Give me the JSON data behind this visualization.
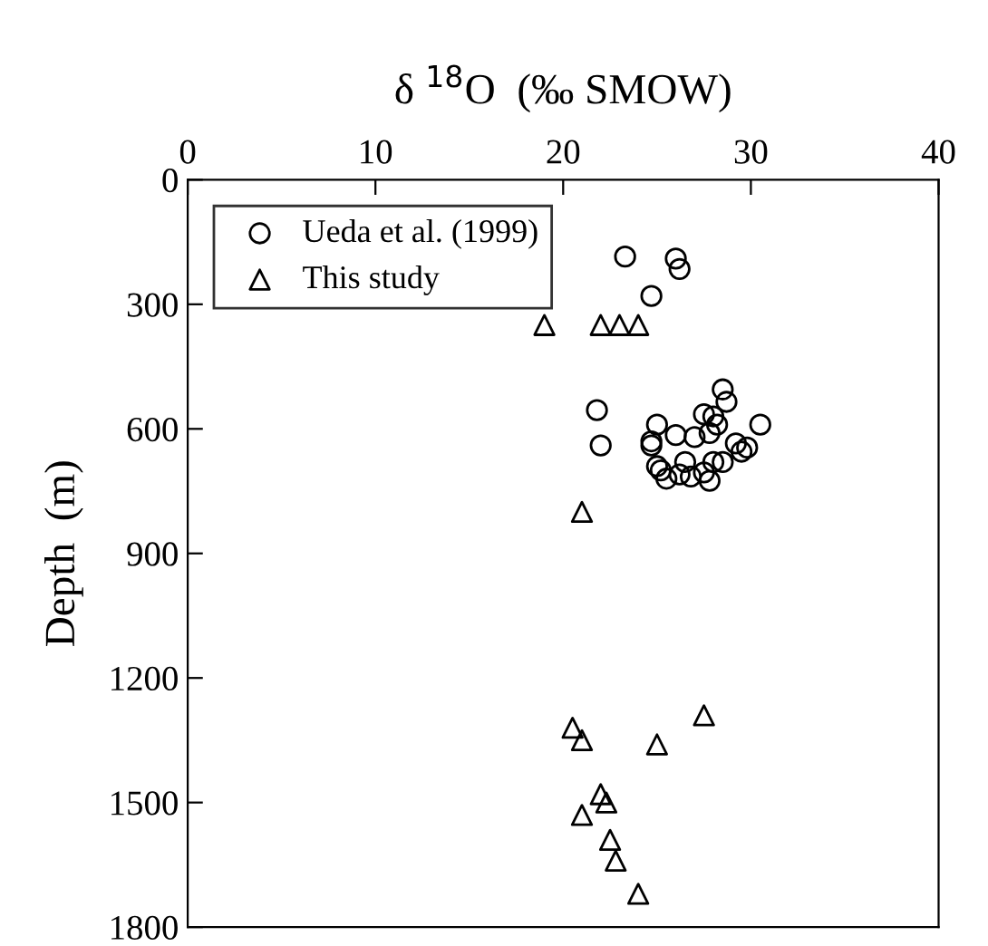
{
  "chart_data": {
    "type": "scatter",
    "xlabel": "δ $^{18}$O  (‰ SMOW)",
    "ylabel": "Depth  (m)",
    "xlim": [
      0,
      40
    ],
    "xticks": [
      0,
      10,
      20,
      30,
      40
    ],
    "ylim": [
      1800,
      0
    ],
    "yticks": [
      0,
      300,
      600,
      900,
      1200,
      1500,
      1800
    ],
    "legend": "top left",
    "grid": false,
    "series": [
      {
        "name": "Ueda et al. (1999)",
        "color": "#000000",
        "marker": "circle",
        "x": [
          23.3,
          26,
          26.2,
          24.7,
          21.8,
          22,
          28.5,
          28.7,
          30.5,
          25,
          27.5,
          28,
          28.2,
          27.8,
          24.7,
          25,
          25.2,
          26,
          24.7,
          26.5,
          26.2,
          27.5,
          28,
          28.5,
          27.8,
          29.2,
          29.8,
          29.5,
          25.5,
          26.8,
          27
        ],
        "values": [
          185,
          190,
          215,
          280,
          555,
          640,
          505,
          535,
          590,
          590,
          565,
          570,
          590,
          610,
          630,
          690,
          700,
          615,
          640,
          680,
          710,
          705,
          680,
          680,
          725,
          635,
          645,
          655,
          720,
          715,
          620
        ]
      },
      {
        "name": "This study",
        "color": "#000000",
        "marker": "triangle",
        "x": [
          19,
          22,
          23,
          24,
          21,
          20.5,
          21,
          27.5,
          25,
          22,
          22.3,
          21,
          22.5,
          22.8,
          24
        ],
        "values": [
          350,
          350,
          350,
          350,
          800,
          1320,
          1350,
          1290,
          1360,
          1480,
          1500,
          1530,
          1590,
          1640,
          1720
        ]
      }
    ]
  }
}
